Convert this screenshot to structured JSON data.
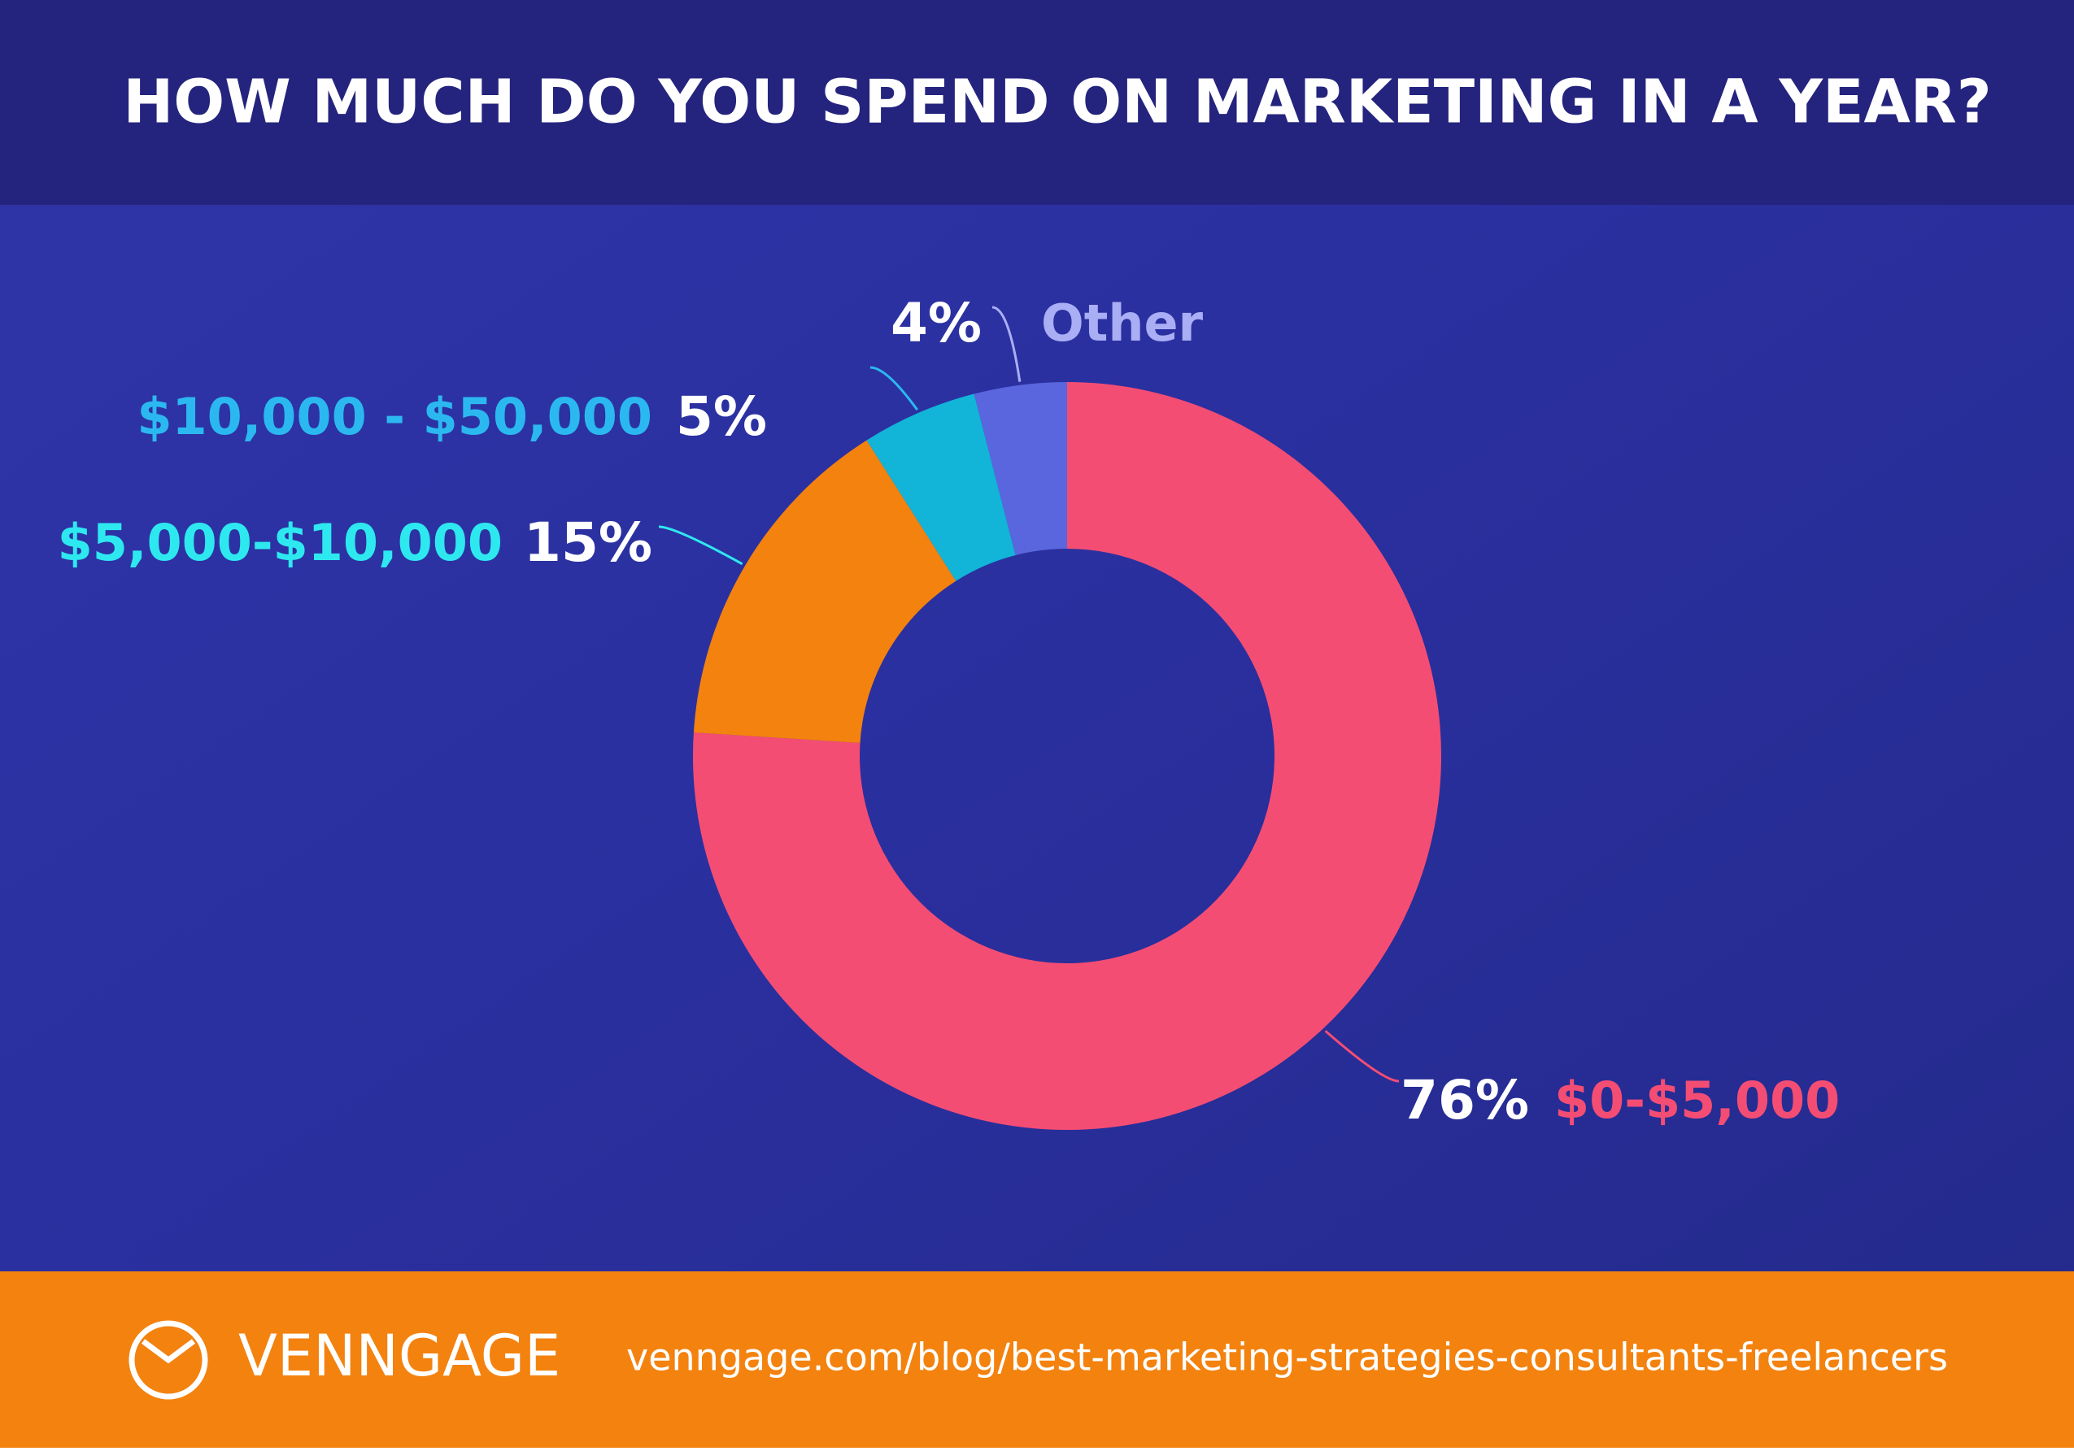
{
  "chart_data": {
    "type": "donut",
    "title": "HOW MUCH DO YOU SPEND ON MARKETING IN A YEAR?",
    "categories": [
      "$0-$5,000",
      "$5,000-$10,000",
      "$10,000 - $50,000",
      "Other"
    ],
    "values": [
      76,
      15,
      5,
      4
    ],
    "value_labels": [
      "76%",
      "15%",
      "5%",
      "4%"
    ],
    "colors": [
      "#f44d74",
      "#f3820f",
      "#12b5d8",
      "#5a66dd"
    ],
    "label_colors": [
      "#f44d74",
      "#2ee8f0",
      "#2bb8f0",
      "#a9aef5"
    ]
  },
  "footer": {
    "brand": "VENNGAGE",
    "url": "venngage.com/blog/best-marketing-strategies-consultants-freelancers"
  }
}
